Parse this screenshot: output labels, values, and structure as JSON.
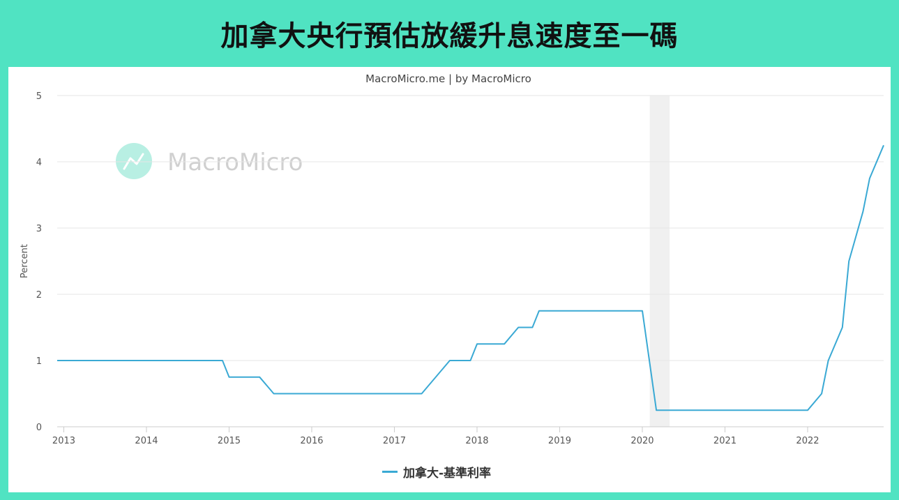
{
  "headline": "加拿大央行預估放緩升息速度至一碼",
  "chart_data": {
    "type": "line",
    "title": "MacroMicro.me | by MacroMicro",
    "watermark": "MacroMicro",
    "ylabel": "Percent",
    "xlabel": "",
    "ylim": [
      0,
      5
    ],
    "yticks": [
      0,
      1,
      2,
      3,
      4,
      5
    ],
    "xlim": [
      2012.92,
      2022.92
    ],
    "xticks": [
      "2013",
      "2014",
      "2015",
      "2016",
      "2017",
      "2018",
      "2019",
      "2020",
      "2021",
      "2022"
    ],
    "grid": true,
    "legend_position": "bottom-center",
    "recession_band": [
      2020.09,
      2020.33
    ],
    "series": [
      {
        "name": "加拿大-基準利率",
        "color": "#3aa9d4",
        "x": [
          2012.92,
          2014.92,
          2015.0,
          2015.37,
          2015.54,
          2017.33,
          2017.67,
          2017.92,
          2018.0,
          2018.33,
          2018.5,
          2018.67,
          2018.75,
          2020.0,
          2020.17,
          2022.0,
          2022.17,
          2022.25,
          2022.42,
          2022.5,
          2022.67,
          2022.75,
          2022.92
        ],
        "y": [
          1.0,
          1.0,
          0.75,
          0.75,
          0.5,
          0.5,
          1.0,
          1.0,
          1.25,
          1.25,
          1.5,
          1.5,
          1.75,
          1.75,
          0.25,
          0.25,
          0.5,
          1.0,
          1.5,
          2.5,
          3.25,
          3.75,
          4.25
        ]
      }
    ]
  },
  "colors": {
    "frame": "#50e3c2",
    "series": "#3aa9d4",
    "recession_band": "#f0f0f0",
    "gridline": "#e6e6e6",
    "watermark_logo": "#b8efe3",
    "watermark_text": "#d0d0d0"
  }
}
